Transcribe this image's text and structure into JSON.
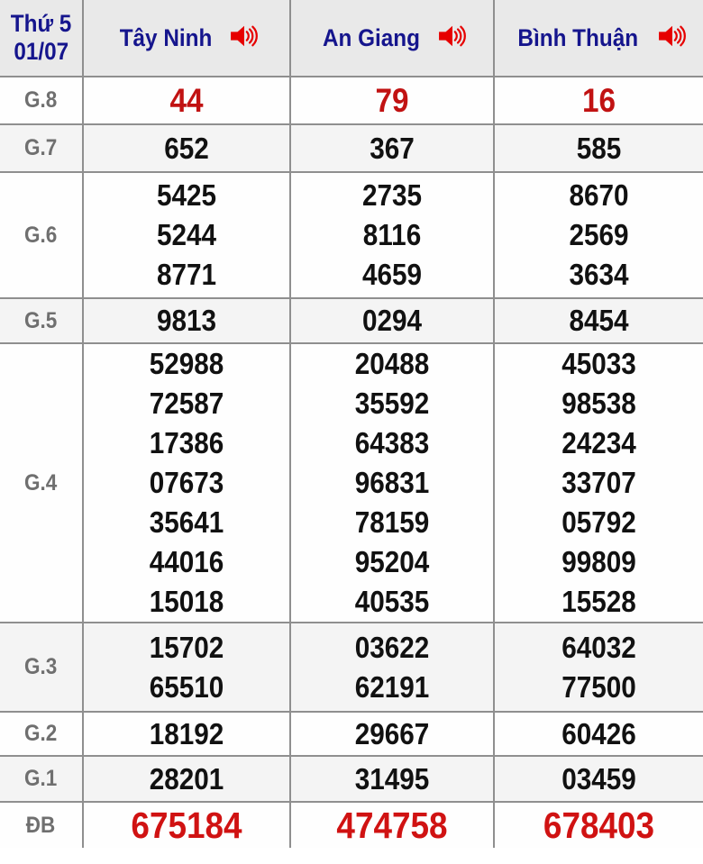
{
  "header": {
    "date_line1": "Thứ 5",
    "date_line2": "01/07",
    "provinces": [
      {
        "label": "Tây Ninh",
        "icon": "speaker-icon"
      },
      {
        "label": "An Giang",
        "icon": "speaker-icon"
      },
      {
        "label": "Bình Thuận",
        "icon": "speaker-icon"
      }
    ]
  },
  "colors": {
    "header_text": "#15158d",
    "header_bg": "#e9e9e9",
    "border": "#8f8f8f",
    "number_black": "#111111",
    "number_red_g8": "#c11212",
    "number_red_db": "#d01212",
    "speaker_red": "#e60000",
    "row_stripe": "#f4f4f4",
    "label_gray": "#6f6f6f"
  },
  "rows": [
    {
      "key": "g8",
      "label": "G.8",
      "values": [
        [
          "44"
        ],
        [
          "79"
        ],
        [
          "16"
        ]
      ]
    },
    {
      "key": "g7",
      "label": "G.7",
      "values": [
        [
          "652"
        ],
        [
          "367"
        ],
        [
          "585"
        ]
      ]
    },
    {
      "key": "g6",
      "label": "G.6",
      "values": [
        [
          "5425",
          "5244",
          "8771"
        ],
        [
          "2735",
          "8116",
          "4659"
        ],
        [
          "8670",
          "2569",
          "3634"
        ]
      ]
    },
    {
      "key": "g5",
      "label": "G.5",
      "values": [
        [
          "9813"
        ],
        [
          "0294"
        ],
        [
          "8454"
        ]
      ]
    },
    {
      "key": "g4",
      "label": "G.4",
      "values": [
        [
          "52988",
          "72587",
          "17386",
          "07673",
          "35641",
          "44016",
          "15018"
        ],
        [
          "20488",
          "35592",
          "64383",
          "96831",
          "78159",
          "95204",
          "40535"
        ],
        [
          "45033",
          "98538",
          "24234",
          "33707",
          "05792",
          "99809",
          "15528"
        ]
      ]
    },
    {
      "key": "g3",
      "label": "G.3",
      "values": [
        [
          "15702",
          "65510"
        ],
        [
          "03622",
          "62191"
        ],
        [
          "64032",
          "77500"
        ]
      ]
    },
    {
      "key": "g2",
      "label": "G.2",
      "values": [
        [
          "18192"
        ],
        [
          "29667"
        ],
        [
          "60426"
        ]
      ]
    },
    {
      "key": "g1",
      "label": "G.1",
      "values": [
        [
          "28201"
        ],
        [
          "31495"
        ],
        [
          "03459"
        ]
      ]
    },
    {
      "key": "db",
      "label": "ĐB",
      "values": [
        [
          "675184"
        ],
        [
          "474758"
        ],
        [
          "678403"
        ]
      ]
    }
  ]
}
